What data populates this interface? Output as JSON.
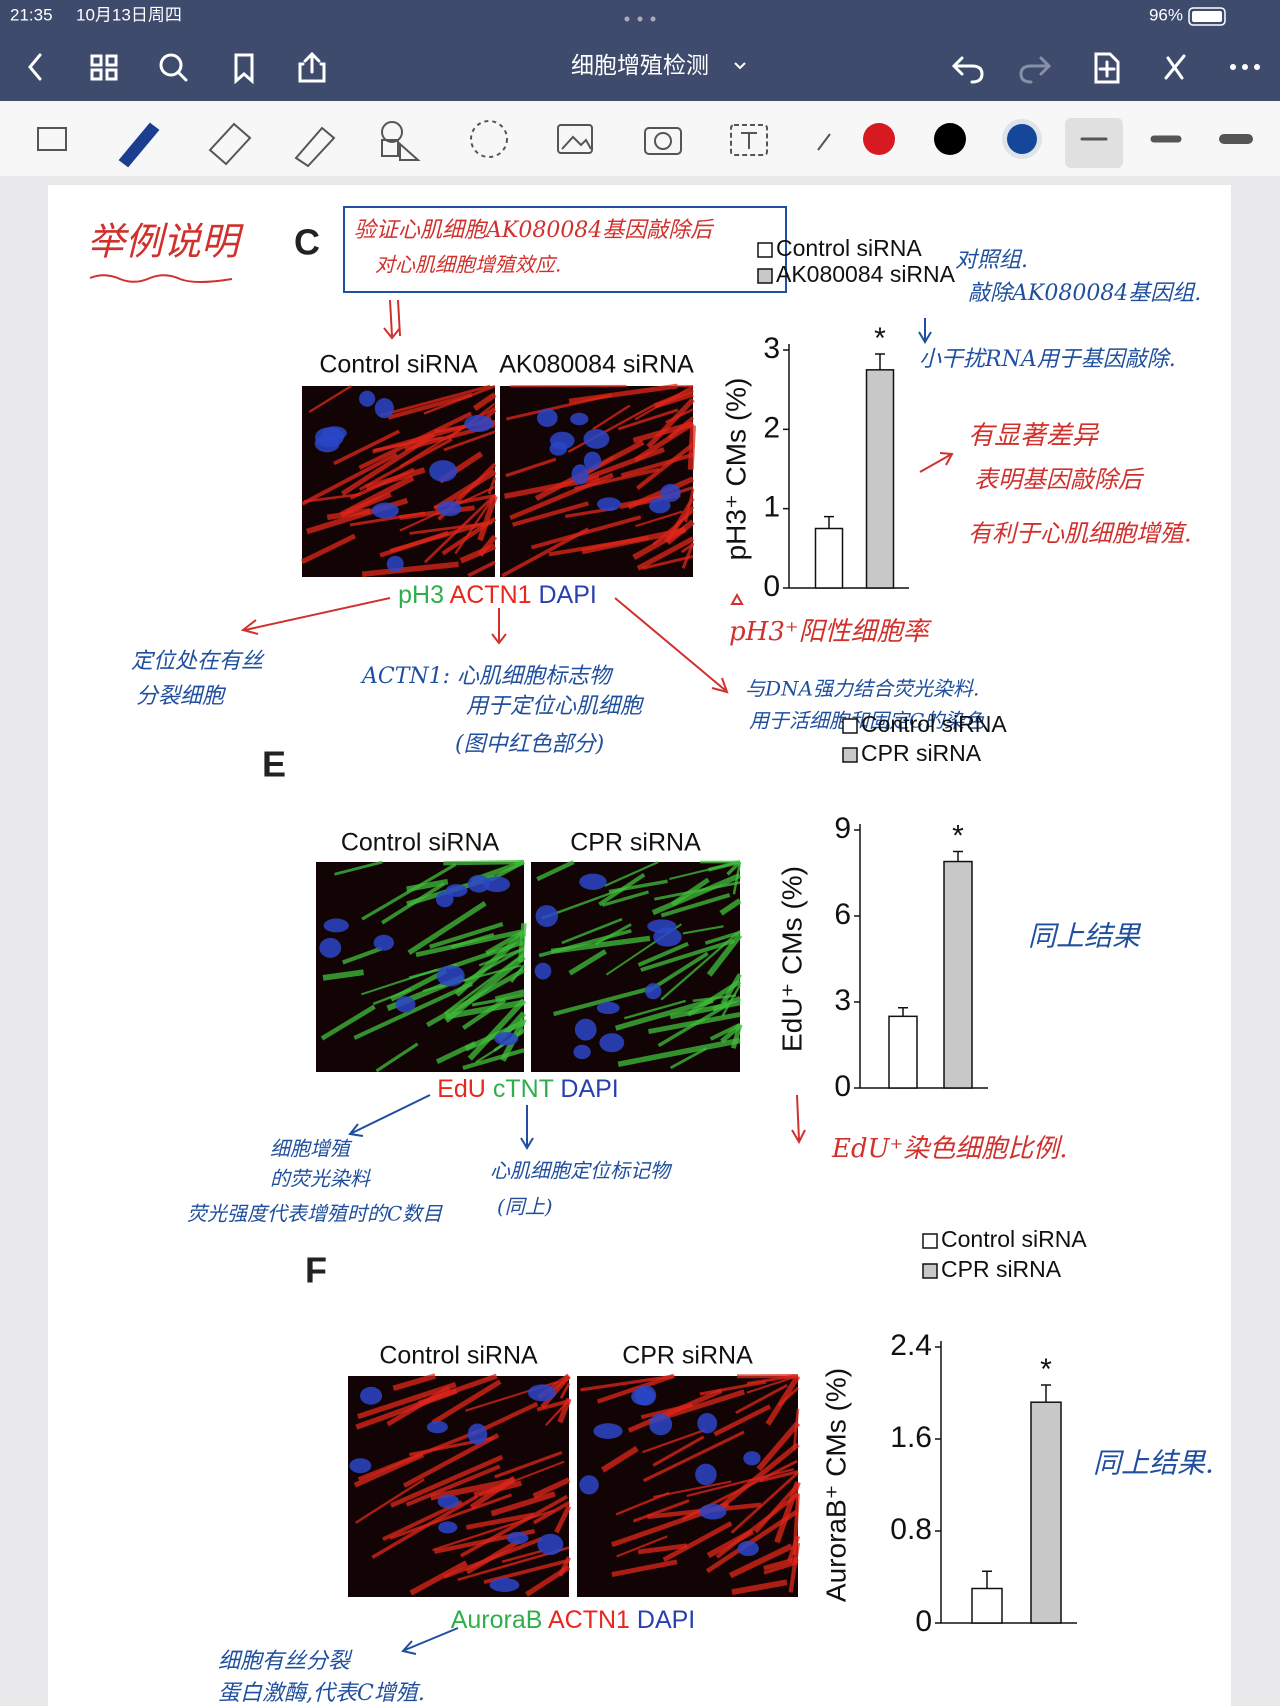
{
  "status_bar": {
    "time": "21:35",
    "date": "10月13日周四",
    "battery": "96%"
  },
  "toolbar": {
    "title": "细胞增殖检测"
  },
  "page": {
    "heading": "举例说明",
    "panels": [
      {
        "letter": "C",
        "image_labels": [
          "Control siRNA",
          "AK080084 siRNA"
        ],
        "stain": [
          {
            "text": "pH3",
            "color": "#2fae4a"
          },
          {
            "text": "ACTN1",
            "color": "#e8281e"
          },
          {
            "text": "DAPI",
            "color": "#2a3fb0"
          }
        ]
      },
      {
        "letter": "E",
        "image_labels": [
          "Control siRNA",
          "CPR siRNA"
        ],
        "stain": [
          {
            "text": "EdU",
            "color": "#e8281e"
          },
          {
            "text": "cTNT",
            "color": "#2fae4a"
          },
          {
            "text": "DAPI",
            "color": "#2a3fb0"
          }
        ]
      },
      {
        "letter": "F",
        "image_labels": [
          "Control siRNA",
          "CPR siRNA"
        ],
        "stain": [
          {
            "text": "AuroraB",
            "color": "#2fae4a"
          },
          {
            "text": "ACTN1",
            "color": "#e8281e"
          },
          {
            "text": "DAPI",
            "color": "#2a3fb0"
          }
        ]
      }
    ],
    "notes": [
      "验证心肌细胞AK080084基因敲除后",
      "对心肌细胞增殖效应.",
      "对照组.",
      "敲除AK080084基因组.",
      "小干扰RNA用于基因敲除.",
      "有显著差异",
      "表明基因敲除后",
      "有利于心肌细胞增殖.",
      "pH3⁺阳性细胞率",
      "定位处在有丝",
      "分裂细胞",
      "ACTN1: 心肌细胞标志物",
      "用于定位心肌细胞",
      "(图中红色部分)",
      "与DNA强力结合荧光染料.",
      "用于活细胞和固定C的染色",
      "同上结果",
      "EdU⁺染色细胞比例.",
      "细胞增殖",
      "的荧光染料",
      "荧光强度代表增殖时的C数目",
      "心肌细胞定位标记物",
      "(同上)",
      "同上结果.",
      "细胞有丝分裂",
      "蛋白激酶,代表C增殖."
    ]
  },
  "chart_data": [
    {
      "type": "bar",
      "ylabel": "pH3⁺ CMs (%)",
      "categories": [
        "Control siRNA",
        "AK080084 siRNA"
      ],
      "colors": [
        "#ffffff",
        "#c8c8c8"
      ],
      "values": [
        0.75,
        2.75
      ],
      "errors": [
        0.15,
        0.2
      ],
      "annotation": "*",
      "ylim": [
        0,
        3
      ],
      "yticks": [
        0,
        1,
        2,
        3
      ]
    },
    {
      "type": "bar",
      "ylabel": "EdU⁺ CMs (%)",
      "categories": [
        "Control siRNA",
        "CPR siRNA"
      ],
      "colors": [
        "#ffffff",
        "#c8c8c8"
      ],
      "values": [
        2.5,
        7.9
      ],
      "errors": [
        0.3,
        0.35
      ],
      "annotation": "*",
      "ylim": [
        0,
        9
      ],
      "yticks": [
        0,
        3,
        6,
        9
      ]
    },
    {
      "type": "bar",
      "ylabel": "AuroraB⁺ CMs (%)",
      "categories": [
        "Control siRNA",
        "CPR siRNA"
      ],
      "colors": [
        "#ffffff",
        "#c8c8c8"
      ],
      "values": [
        0.3,
        1.92
      ],
      "errors": [
        0.15,
        0.15
      ],
      "annotation": "*",
      "ylim": [
        0,
        2.4
      ],
      "yticks": [
        0,
        0.8,
        1.6,
        2.4
      ]
    }
  ]
}
